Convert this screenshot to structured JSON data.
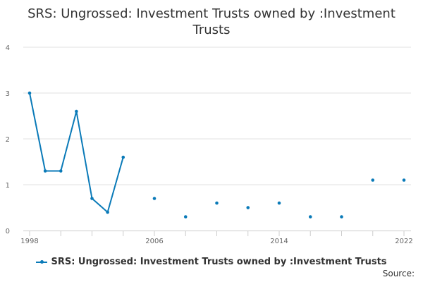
{
  "chart_data": {
    "type": "line",
    "title": "SRS: Ungrossed: Investment Trusts owned by :Investment Trusts",
    "xlabel": "",
    "ylabel": "",
    "xlim": [
      1998,
      2022
    ],
    "ylim": [
      0,
      4
    ],
    "x_ticks": [
      1998,
      2006,
      2014,
      2022
    ],
    "y_ticks": [
      0,
      1,
      2,
      3,
      4
    ],
    "grid": "horizontal",
    "legend": "bottom",
    "series": [
      {
        "name": "SRS: Ungrossed: Investment Trusts owned by :Investment Trusts",
        "color": "#0a7ab8",
        "x": [
          1998,
          1999,
          2000,
          2001,
          2002,
          2003,
          2004,
          2006,
          2008,
          2010,
          2012,
          2014,
          2016,
          2018,
          2020,
          2022
        ],
        "values": [
          3.0,
          1.3,
          1.3,
          2.6,
          0.7,
          0.4,
          1.6,
          0.7,
          0.3,
          0.6,
          0.5,
          0.6,
          0.3,
          0.3,
          1.1,
          1.1
        ],
        "connected_until_index": 6
      }
    ]
  },
  "source_label": "Source:"
}
